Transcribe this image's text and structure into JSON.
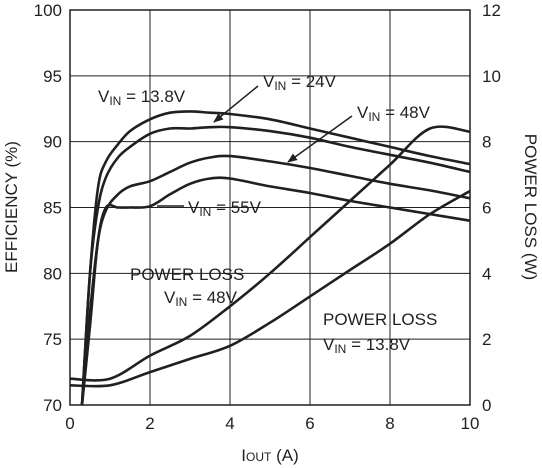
{
  "chart_data": {
    "type": "line",
    "xlabel_main": "I",
    "xlabel_sub": "OUT",
    "xlabel_unit": " (A)",
    "ylabel": "EFFICIENCY (%)",
    "y2label": "POWER LOSS (W)",
    "xlim": [
      0,
      10
    ],
    "ylim": [
      70,
      100
    ],
    "y2lim": [
      0,
      12
    ],
    "xticks": [
      "0",
      "2",
      "4",
      "6",
      "8",
      "10"
    ],
    "yticks": [
      "70",
      "75",
      "80",
      "85",
      "90",
      "95",
      "100"
    ],
    "y2ticks": [
      "0",
      "2",
      "4",
      "6",
      "8",
      "10",
      "12"
    ],
    "grid": true,
    "series": [
      {
        "name": "VIN = 13.8V",
        "axis": "left",
        "x": [
          0.3,
          0.5,
          0.7,
          0.9,
          1.2,
          1.5,
          2.0,
          2.5,
          3.0,
          3.5,
          4.0,
          5.0,
          6.0,
          7.0,
          8.0,
          9.0,
          10.0
        ],
        "y": [
          70,
          80,
          86.5,
          88.5,
          89.8,
          90.8,
          91.7,
          92.2,
          92.3,
          92.2,
          92.1,
          91.7,
          91.0,
          90.3,
          89.6,
          88.9,
          88.3
        ]
      },
      {
        "name": "VIN = 24V",
        "axis": "left",
        "x": [
          0.3,
          0.5,
          0.7,
          0.9,
          1.2,
          1.5,
          2.0,
          2.5,
          3.0,
          3.5,
          4.0,
          5.0,
          6.0,
          7.0,
          8.0,
          9.0,
          10.0
        ],
        "y": [
          70,
          80,
          85,
          87.3,
          88.8,
          89.6,
          90.6,
          91.0,
          91.0,
          91.1,
          91.1,
          90.8,
          90.3,
          89.6,
          89.0,
          88.4,
          87.7
        ]
      },
      {
        "name": "VIN = 48V",
        "axis": "left",
        "x": [
          0.3,
          0.5,
          0.7,
          0.9,
          1.2,
          1.5,
          2.0,
          2.5,
          3.0,
          3.5,
          4.0,
          5.0,
          6.0,
          7.0,
          8.0,
          9.0,
          10.0
        ],
        "y": [
          70,
          77,
          82.5,
          84.8,
          86.0,
          86.6,
          87.0,
          87.7,
          88.4,
          88.8,
          88.9,
          88.5,
          88.0,
          87.4,
          86.8,
          86.3,
          85.7
        ]
      },
      {
        "name": "VIN = 55V",
        "axis": "left",
        "x": [
          0.3,
          0.5,
          0.7,
          0.9,
          1.2,
          1.5,
          2.0,
          2.5,
          3.0,
          3.5,
          4.0,
          5.0,
          6.0,
          7.0,
          8.0,
          9.0,
          10.0
        ],
        "y": [
          70,
          76,
          82.5,
          85.0,
          85.0,
          85.0,
          85.1,
          86.0,
          86.8,
          87.2,
          87.2,
          86.6,
          86.1,
          85.5,
          85.0,
          84.5,
          84.0
        ]
      },
      {
        "name": "POWER LOSS VIN = 48V",
        "axis": "right",
        "x": [
          0,
          1,
          2,
          3,
          4,
          5,
          6,
          7,
          8,
          9,
          10
        ],
        "y": [
          0.8,
          0.8,
          1.5,
          2.1,
          3.0,
          4.0,
          5.1,
          6.2,
          7.3,
          8.4,
          8.3
        ]
      },
      {
        "name": "POWER LOSS VIN = 13.8V",
        "axis": "right",
        "x": [
          0,
          1,
          2,
          3,
          4,
          5,
          6,
          7,
          8,
          9,
          10
        ],
        "y": [
          0.6,
          0.6,
          1.0,
          1.4,
          1.8,
          2.5,
          3.3,
          4.1,
          4.9,
          5.8,
          6.5
        ]
      }
    ],
    "labels": [
      {
        "id": "lbl-138",
        "main": "V",
        "sub": "IN",
        "rest": " = 13.8V"
      },
      {
        "id": "lbl-24",
        "main": "V",
        "sub": "IN",
        "rest": " = 24V"
      },
      {
        "id": "lbl-48",
        "main": "V",
        "sub": "IN",
        "rest": " = 48V"
      },
      {
        "id": "lbl-55",
        "main": "V",
        "sub": "IN",
        "rest": " = 55V"
      },
      {
        "id": "lbl-pl48-a",
        "main": "POWER LOSS",
        "sub": "",
        "rest": ""
      },
      {
        "id": "lbl-pl48-b",
        "main": "V",
        "sub": "IN",
        "rest": " = 48V"
      },
      {
        "id": "lbl-pl138-a",
        "main": "POWER LOSS",
        "sub": "",
        "rest": ""
      },
      {
        "id": "lbl-pl138-b",
        "main": "V",
        "sub": "IN",
        "rest": " = 13.8V"
      }
    ]
  }
}
